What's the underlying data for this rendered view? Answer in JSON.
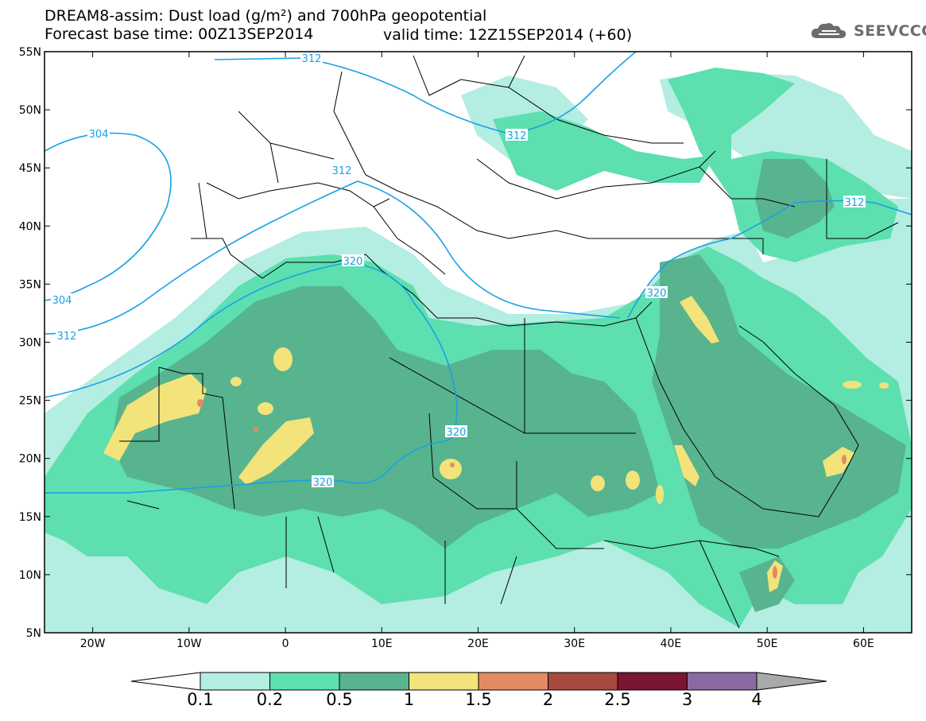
{
  "header": {
    "title": "DREAM8-assim: Dust load (g/m²) and 700hPa geopotential",
    "base_time": "Forecast base time: 00Z13SEP2014",
    "valid_time": "valid time: 12Z15SEP2014 (+60)",
    "logo": "SEEVCCC"
  },
  "map": {
    "lon_range": [
      -25,
      65
    ],
    "lat_range": [
      5,
      55
    ],
    "lon_ticks": [
      "20W",
      "10W",
      "0",
      "10E",
      "20E",
      "30E",
      "40E",
      "50E",
      "60E"
    ],
    "lat_ticks": [
      "55N",
      "50N",
      "45N",
      "40N",
      "35N",
      "30N",
      "25N",
      "20N",
      "15N",
      "10N",
      "5N"
    ],
    "contour_labels": [
      "312",
      "304",
      "312",
      "304",
      "312",
      "320",
      "312",
      "312",
      "320",
      "320",
      "320"
    ],
    "contour_color": "#1aa0e6"
  },
  "legend": {
    "labels": [
      "0.1",
      "0.2",
      "0.5",
      "1",
      "1.5",
      "2",
      "2.5",
      "3",
      "4"
    ],
    "colors": [
      "#ffffff",
      "#b4ede1",
      "#5ddfb0",
      "#57b48f",
      "#f2e37a",
      "#e48a62",
      "#a8493d",
      "#7a1533",
      "#8a6aa4",
      "#a9a9a9"
    ]
  }
}
